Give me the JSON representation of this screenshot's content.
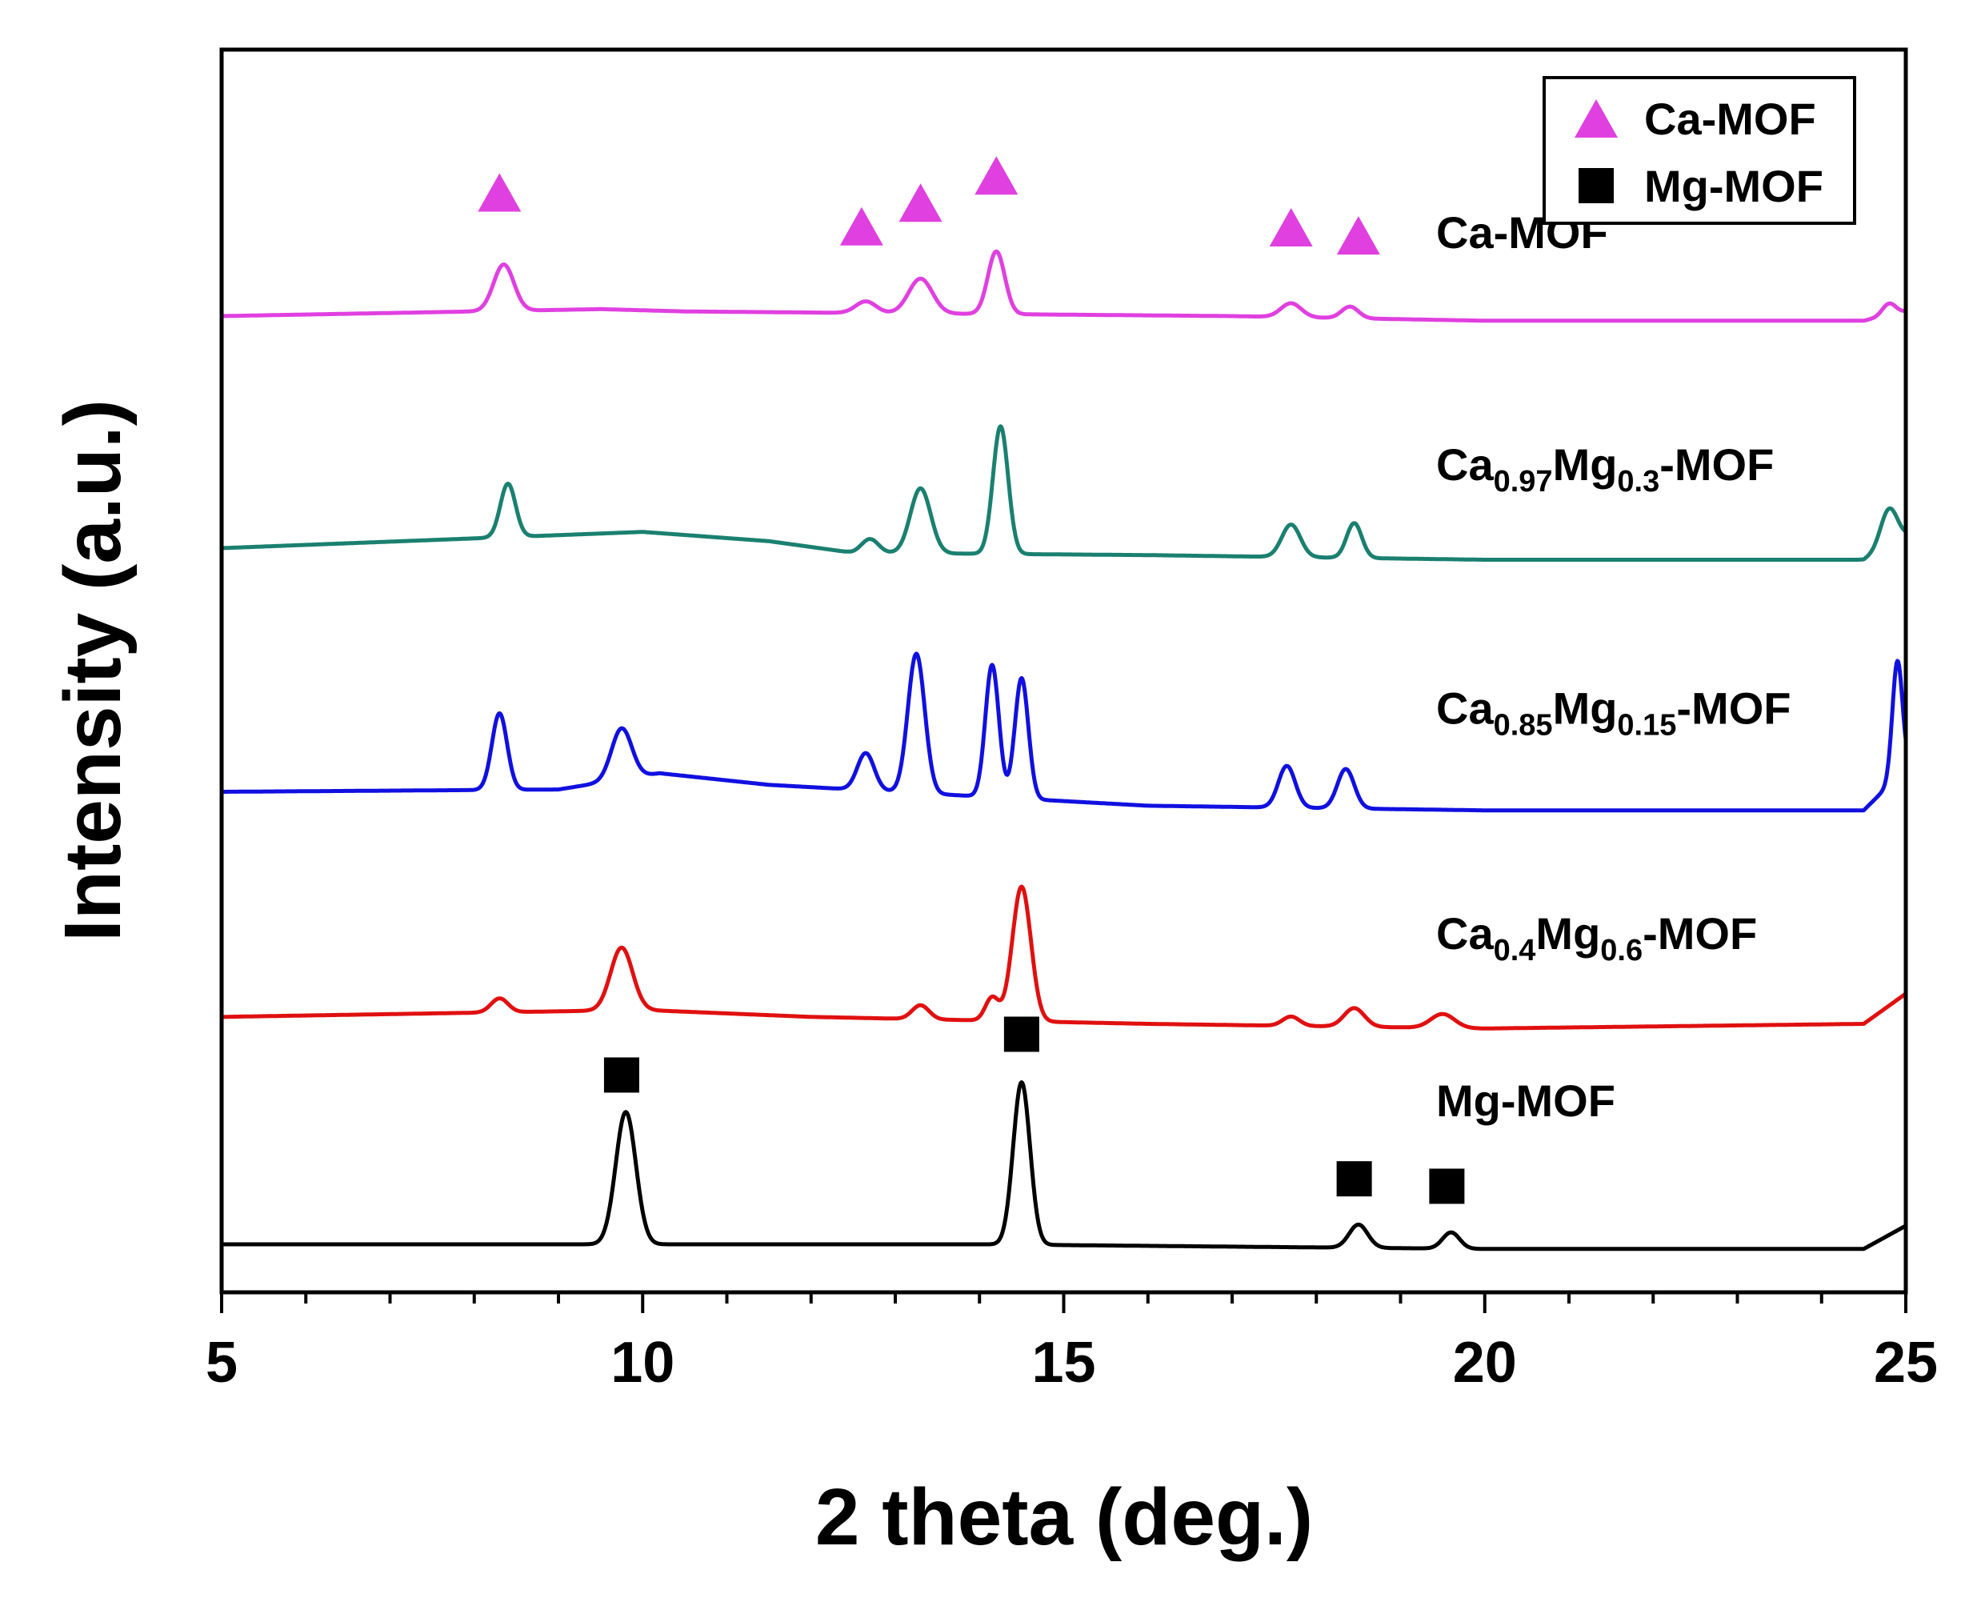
{
  "chart_data": {
    "type": "line",
    "title": "",
    "xlabel": "2 theta (deg.)",
    "ylabel": "Intensity (a.u.)",
    "xlim": [
      5,
      25
    ],
    "xticks": [
      5,
      10,
      15,
      20,
      25
    ],
    "yticks_shown": false,
    "legend": {
      "position": "top-right",
      "entries": [
        {
          "label": "Ca-MOF",
          "marker": "triangle",
          "color": "#e040e0"
        },
        {
          "label": "Mg-MOF",
          "marker": "square",
          "color": "#000000"
        }
      ]
    },
    "series": [
      {
        "name": "Ca-MOF",
        "label_parts": [
          {
            "t": "Ca-MOF",
            "sub": false
          }
        ],
        "color": "#e040e0",
        "offset": 4.0,
        "baseline": [
          [
            5,
            0
          ],
          [
            9.5,
            0.03
          ],
          [
            10.5,
            0.02
          ],
          [
            17,
            0.0
          ],
          [
            20,
            -0.02
          ],
          [
            24.5,
            -0.02
          ],
          [
            25,
            0.02
          ]
        ],
        "peaks": [
          [
            8.35,
            0.2,
            0.12
          ],
          [
            12.65,
            0.05,
            0.12
          ],
          [
            13.3,
            0.15,
            0.14
          ],
          [
            14.2,
            0.27,
            0.1
          ],
          [
            17.7,
            0.06,
            0.12
          ],
          [
            18.4,
            0.05,
            0.1
          ],
          [
            24.8,
            0.05,
            0.08
          ]
        ],
        "markers": [
          8.3,
          12.6,
          13.3,
          14.2,
          17.7,
          18.5
        ]
      },
      {
        "name": "Ca0.97Mg0.3-MOF",
        "label_parts": [
          {
            "t": "Ca",
            "sub": false
          },
          {
            "t": "0.97",
            "sub": true
          },
          {
            "t": "Mg",
            "sub": false
          },
          {
            "t": "0.3",
            "sub": true
          },
          {
            "t": "-MOF",
            "sub": false
          }
        ],
        "color": "#1a8070",
        "offset": 3.0,
        "baseline": [
          [
            5,
            0
          ],
          [
            10,
            0.07
          ],
          [
            11.5,
            0.03
          ],
          [
            12.5,
            -0.02
          ],
          [
            16,
            -0.03
          ],
          [
            20,
            -0.05
          ],
          [
            24.5,
            -0.05
          ],
          [
            25,
            0.05
          ]
        ],
        "peaks": [
          [
            8.4,
            0.23,
            0.09
          ],
          [
            12.7,
            0.06,
            0.1
          ],
          [
            13.3,
            0.28,
            0.12
          ],
          [
            14.25,
            0.55,
            0.09
          ],
          [
            17.7,
            0.14,
            0.11
          ],
          [
            18.45,
            0.15,
            0.09
          ],
          [
            24.8,
            0.16,
            0.1
          ]
        ],
        "markers": []
      },
      {
        "name": "Ca0.85Mg0.15-MOF",
        "label_parts": [
          {
            "t": "Ca",
            "sub": false
          },
          {
            "t": "0.85",
            "sub": true
          },
          {
            "t": "Mg",
            "sub": false
          },
          {
            "t": "0.15",
            "sub": true
          },
          {
            "t": "-MOF",
            "sub": false
          }
        ],
        "color": "#1010e0",
        "offset": 1.95,
        "baseline": [
          [
            5,
            0
          ],
          [
            9,
            0.01
          ],
          [
            10.2,
            0.08
          ],
          [
            11.5,
            0.03
          ],
          [
            16,
            -0.06
          ],
          [
            20,
            -0.08
          ],
          [
            24.5,
            -0.08
          ],
          [
            25,
            0.1
          ]
        ],
        "peaks": [
          [
            8.3,
            0.33,
            0.09
          ],
          [
            9.75,
            0.22,
            0.12
          ],
          [
            12.65,
            0.16,
            0.1
          ],
          [
            13.25,
            0.6,
            0.1
          ],
          [
            14.15,
            0.57,
            0.08
          ],
          [
            14.5,
            0.52,
            0.08
          ],
          [
            17.65,
            0.18,
            0.1
          ],
          [
            18.35,
            0.17,
            0.1
          ],
          [
            24.9,
            0.5,
            0.06
          ]
        ],
        "markers": []
      },
      {
        "name": "Ca0.4Mg0.6-MOF",
        "label_parts": [
          {
            "t": "Ca",
            "sub": false
          },
          {
            "t": "0.4",
            "sub": true
          },
          {
            "t": "Mg",
            "sub": false
          },
          {
            "t": "0.6",
            "sub": true
          },
          {
            "t": "-MOF",
            "sub": false
          }
        ],
        "color": "#e01010",
        "offset": 0.98,
        "baseline": [
          [
            5,
            0
          ],
          [
            10,
            0.03
          ],
          [
            12,
            0.0
          ],
          [
            16,
            -0.03
          ],
          [
            20,
            -0.05
          ],
          [
            24.5,
            -0.03
          ],
          [
            25,
            0.1
          ]
        ],
        "peaks": [
          [
            8.3,
            0.06,
            0.1
          ],
          [
            9.75,
            0.27,
            0.13
          ],
          [
            13.3,
            0.06,
            0.1
          ],
          [
            14.15,
            0.1,
            0.08
          ],
          [
            14.5,
            0.58,
            0.11
          ],
          [
            17.7,
            0.04,
            0.1
          ],
          [
            18.45,
            0.08,
            0.12
          ],
          [
            19.5,
            0.06,
            0.14
          ]
        ],
        "markers": []
      },
      {
        "name": "Mg-MOF",
        "label_parts": [
          {
            "t": "Mg-MOF",
            "sub": false
          }
        ],
        "color": "#000000",
        "offset": 0.0,
        "baseline": [
          [
            5,
            0
          ],
          [
            14,
            0.0
          ],
          [
            20,
            -0.02
          ],
          [
            24.5,
            -0.02
          ],
          [
            25,
            0.08
          ]
        ],
        "peaks": [
          [
            9.8,
            0.57,
            0.12
          ],
          [
            14.5,
            0.7,
            0.1
          ],
          [
            18.5,
            0.1,
            0.11
          ],
          [
            19.6,
            0.07,
            0.1
          ]
        ],
        "markers": [
          9.75,
          14.5,
          18.45,
          19.55
        ]
      }
    ]
  }
}
